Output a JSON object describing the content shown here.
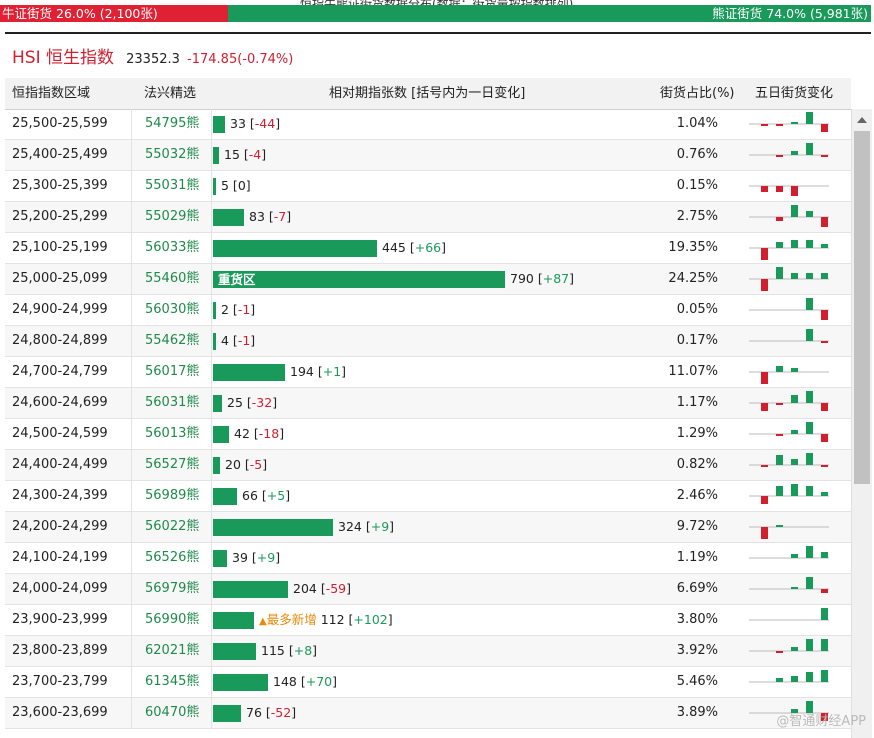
{
  "topbar": {
    "title_cut": "恒指牛熊证街货数据分布(数据：街货量按指数排列)",
    "bull_label": "牛证街货",
    "bull_pct": "26.0%",
    "bull_count": "(2,100张)",
    "bull_fraction": 0.26,
    "bear_label": "熊证街货",
    "bear_pct": "74.0%",
    "bear_count": "(5,981张)"
  },
  "index": {
    "name": "HSI 恒生指数",
    "value": "23352.3",
    "change": "-174.85(-0.74%)"
  },
  "headers": {
    "range": "恒指指数区域",
    "pick": "法兴精选",
    "rel": "相对期指张数 [括号内为一日变化]",
    "share": "街货占比(%)",
    "five": "五日街货变化"
  },
  "colors": {
    "green": "#1a9a5a",
    "red": "#d11f2f",
    "orange": "#e8890c"
  },
  "bear_char": "熊",
  "tags": {
    "heavy": "重货区",
    "new": "最多新增",
    "new_icon": "warning-triangle-icon"
  },
  "watermark": "@智通财经APP",
  "max_contracts": 790,
  "rows": [
    {
      "range": "25,500-25,599",
      "code": "54795",
      "qty": "33",
      "chg": "-44",
      "pct": "1.04%",
      "spark": [
        -1,
        -1,
        1,
        6,
        -4
      ]
    },
    {
      "range": "25,400-25,499",
      "code": "55032",
      "qty": "15",
      "chg": "-4",
      "pct": "0.76%",
      "spark": [
        0,
        -1,
        2,
        6,
        -1
      ]
    },
    {
      "range": "25,300-25,399",
      "code": "55031",
      "qty": "5",
      "chg": "0",
      "pct": "0.15%",
      "spark": [
        -3,
        -3,
        -5,
        0,
        0
      ]
    },
    {
      "range": "25,200-25,299",
      "code": "55029",
      "qty": "83",
      "chg": "-7",
      "pct": "2.75%",
      "spark": [
        0,
        -2,
        6,
        3,
        -5
      ]
    },
    {
      "range": "25,100-25,199",
      "code": "56033",
      "qty": "445",
      "chg": "+66",
      "pct": "19.35%",
      "spark": [
        -6,
        3,
        4,
        4,
        2
      ]
    },
    {
      "range": "25,000-25,099",
      "code": "55460",
      "qty": "790",
      "chg": "+87",
      "pct": "24.25%",
      "tag": "heavy",
      "spark": [
        -6,
        6,
        3,
        3,
        3
      ]
    },
    {
      "range": "24,900-24,999",
      "code": "56030",
      "qty": "2",
      "chg": "-1",
      "pct": "0.05%",
      "spark": [
        0,
        0,
        0,
        6,
        -5
      ]
    },
    {
      "range": "24,800-24,899",
      "code": "55462",
      "qty": "4",
      "chg": "-1",
      "pct": "0.17%",
      "spark": [
        0,
        0,
        0,
        6,
        -1
      ]
    },
    {
      "range": "24,700-24,799",
      "code": "56017",
      "qty": "194",
      "chg": "+1",
      "pct": "11.07%",
      "spark": [
        -6,
        3,
        2,
        0,
        0
      ]
    },
    {
      "range": "24,600-24,699",
      "code": "56031",
      "qty": "25",
      "chg": "-32",
      "pct": "1.17%",
      "spark": [
        -4,
        -1,
        4,
        6,
        -4
      ]
    },
    {
      "range": "24,500-24,599",
      "code": "56013",
      "qty": "42",
      "chg": "-18",
      "pct": "1.29%",
      "spark": [
        0,
        -1,
        2,
        6,
        -4
      ]
    },
    {
      "range": "24,400-24,499",
      "code": "56527",
      "qty": "20",
      "chg": "-5",
      "pct": "0.82%",
      "spark": [
        -1,
        5,
        3,
        6,
        -1
      ]
    },
    {
      "range": "24,300-24,399",
      "code": "56989",
      "qty": "66",
      "chg": "+5",
      "pct": "2.46%",
      "spark": [
        -4,
        5,
        6,
        5,
        2
      ]
    },
    {
      "range": "24,200-24,299",
      "code": "56022",
      "qty": "324",
      "chg": "+9",
      "pct": "9.72%",
      "spark": [
        -6,
        1,
        0,
        0,
        0
      ]
    },
    {
      "range": "24,100-24,199",
      "code": "56526",
      "qty": "39",
      "chg": "+9",
      "pct": "1.19%",
      "spark": [
        0,
        0,
        2,
        6,
        3
      ]
    },
    {
      "range": "24,000-24,099",
      "code": "56979",
      "qty": "204",
      "chg": "-59",
      "pct": "6.69%",
      "spark": [
        0,
        0,
        1,
        6,
        -2
      ]
    },
    {
      "range": "23,900-23,999",
      "code": "56990",
      "qty": "112",
      "chg": "+102",
      "pct": "3.80%",
      "tag": "new",
      "spark": [
        0,
        0,
        0,
        0,
        6
      ]
    },
    {
      "range": "23,800-23,899",
      "code": "62021",
      "qty": "115",
      "chg": "+8",
      "pct": "3.92%",
      "spark": [
        0,
        -1,
        2,
        6,
        6
      ]
    },
    {
      "range": "23,700-23,799",
      "code": "61345",
      "qty": "148",
      "chg": "+70",
      "pct": "5.46%",
      "spark": [
        0,
        2,
        3,
        5,
        6
      ]
    },
    {
      "range": "23,600-23,699",
      "code": "60470",
      "qty": "76",
      "chg": "-52",
      "pct": "3.89%",
      "spark": [
        0,
        0,
        2,
        6,
        -4
      ]
    }
  ]
}
